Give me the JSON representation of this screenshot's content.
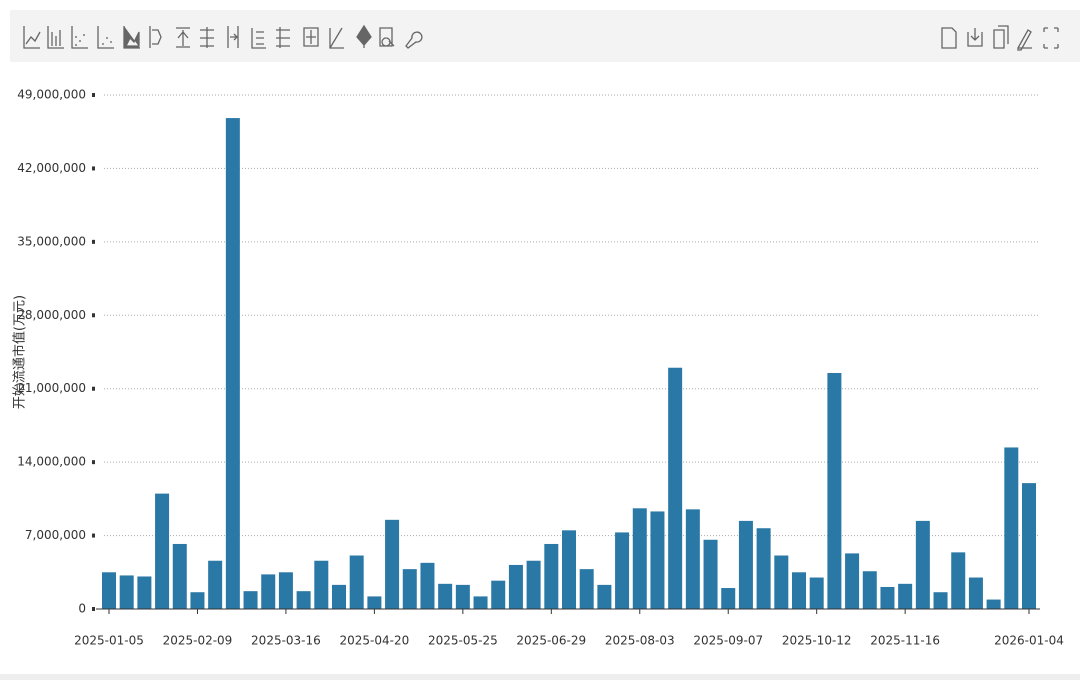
{
  "chart_data": {
    "type": "bar",
    "y_label": "开始流通市值(万元)",
    "color": "#2a78a6",
    "grid": true,
    "categories": [
      "2025-01-05",
      null,
      null,
      null,
      null,
      "2025-02-09",
      null,
      null,
      null,
      null,
      "2025-03-16",
      null,
      null,
      null,
      null,
      "2025-04-20",
      null,
      null,
      null,
      null,
      "2025-05-25",
      null,
      null,
      null,
      null,
      "2025-06-29",
      null,
      null,
      null,
      null,
      "2025-08-03",
      null,
      null,
      null,
      null,
      "2025-09-07",
      null,
      null,
      null,
      null,
      "2025-10-12",
      null,
      null,
      null,
      null,
      "2025-11-16",
      null,
      null,
      null,
      null,
      null,
      null,
      "2026-01-04"
    ],
    "values": [
      3500000,
      3200000,
      3100000,
      11000000,
      6200000,
      1600000,
      4600000,
      46800000,
      1700000,
      3300000,
      3500000,
      1700000,
      4600000,
      2300000,
      5100000,
      1200000,
      8500000,
      3800000,
      4400000,
      2400000,
      2300000,
      1200000,
      2700000,
      4200000,
      4600000,
      6200000,
      7500000,
      3800000,
      2300000,
      7300000,
      9600000,
      9300000,
      23000000,
      9500000,
      6600000,
      2000000,
      8400000,
      7700000,
      5100000,
      3500000,
      3000000,
      22500000,
      5300000,
      3600000,
      2100000,
      2400000,
      8400000,
      1600000,
      5400000,
      3000000,
      900000,
      15400000,
      12000000
    ],
    "ylim": [
      0,
      49000000
    ],
    "yticks": [
      {
        "value": 0,
        "label": "0"
      },
      {
        "value": 7000000,
        "label": "7,000,000"
      },
      {
        "value": 14000000,
        "label": "14,000,000"
      },
      {
        "value": 21000000,
        "label": "21,000,000"
      },
      {
        "value": 28000000,
        "label": "28,000,000"
      },
      {
        "value": 35000000,
        "label": "35,000,000"
      },
      {
        "value": 42000000,
        "label": "42,000,000"
      },
      {
        "value": 49000000,
        "label": "49,000,000"
      }
    ]
  }
}
